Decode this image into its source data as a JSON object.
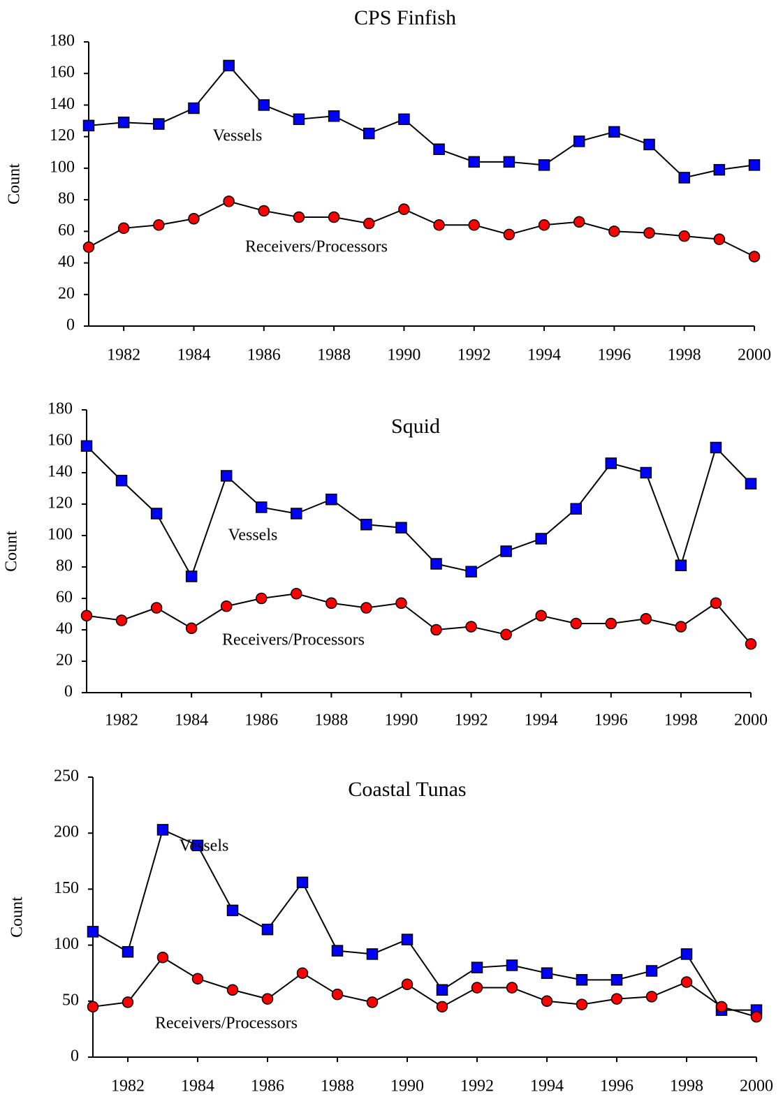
{
  "chart_data": [
    {
      "type": "line",
      "title": "CPS Finfish",
      "y_label": "Count",
      "x": [
        1981,
        1982,
        1983,
        1984,
        1985,
        1986,
        1987,
        1988,
        1989,
        1990,
        1991,
        1992,
        1993,
        1994,
        1995,
        1996,
        1997,
        1998,
        1999,
        2000
      ],
      "xlim": [
        1981,
        2000
      ],
      "xticks": [
        1982,
        1984,
        1986,
        1988,
        1990,
        1992,
        1994,
        1996,
        1998,
        2000
      ],
      "ylim": [
        0,
        180
      ],
      "yticks": [
        0,
        20,
        40,
        60,
        80,
        100,
        120,
        140,
        160,
        180
      ],
      "line_color": "#000000",
      "series": [
        {
          "name": "Vessels",
          "color": "#0000ff",
          "marker": "square",
          "values": [
            127,
            129,
            128,
            138,
            165,
            140,
            131,
            133,
            122,
            131,
            112,
            104,
            104,
            102,
            117,
            123,
            115,
            94,
            99,
            102
          ]
        },
        {
          "name": "Receivers/Processors",
          "color": "#ff0000",
          "marker": "circle",
          "values": [
            50,
            62,
            64,
            68,
            79,
            73,
            69,
            69,
            65,
            74,
            64,
            64,
            58,
            64,
            66,
            60,
            59,
            57,
            55,
            44
          ]
        }
      ]
    },
    {
      "type": "line",
      "title": "Squid",
      "y_label": "Count",
      "x": [
        1981,
        1982,
        1983,
        1984,
        1985,
        1986,
        1987,
        1988,
        1989,
        1990,
        1991,
        1992,
        1993,
        1994,
        1995,
        1996,
        1997,
        1998,
        1999,
        2000
      ],
      "xlim": [
        1981,
        2000
      ],
      "xticks": [
        1982,
        1984,
        1986,
        1988,
        1990,
        1992,
        1994,
        1996,
        1998,
        2000
      ],
      "ylim": [
        0,
        180
      ],
      "yticks": [
        0,
        20,
        40,
        60,
        80,
        100,
        120,
        140,
        160,
        180
      ],
      "line_color": "#000000",
      "series": [
        {
          "name": "Vessels",
          "color": "#0000ff",
          "marker": "square",
          "values": [
            157,
            135,
            114,
            74,
            138,
            118,
            114,
            123,
            107,
            105,
            82,
            77,
            90,
            98,
            117,
            146,
            140,
            81,
            156,
            133
          ]
        },
        {
          "name": "Receivers/Processors",
          "color": "#ff0000",
          "marker": "circle",
          "values": [
            49,
            46,
            54,
            41,
            55,
            60,
            63,
            57,
            54,
            57,
            40,
            42,
            37,
            49,
            44,
            44,
            47,
            42,
            57,
            31
          ]
        }
      ]
    },
    {
      "type": "line",
      "title": "Coastal Tunas",
      "y_label": "Count",
      "x": [
        1981,
        1982,
        1983,
        1984,
        1985,
        1986,
        1987,
        1988,
        1989,
        1990,
        1991,
        1992,
        1993,
        1994,
        1995,
        1996,
        1997,
        1998,
        1999,
        2000
      ],
      "xlim": [
        1981,
        2000
      ],
      "xticks": [
        1982,
        1984,
        1986,
        1988,
        1990,
        1992,
        1994,
        1996,
        1998,
        2000
      ],
      "ylim": [
        0,
        250
      ],
      "yticks": [
        0,
        50,
        100,
        150,
        200,
        250
      ],
      "line_color": "#000000",
      "series": [
        {
          "name": "Vessels",
          "color": "#0000ff",
          "marker": "square",
          "values": [
            112,
            94,
            203,
            189,
            131,
            114,
            156,
            95,
            92,
            105,
            60,
            80,
            82,
            75,
            69,
            69,
            77,
            92,
            42,
            42
          ]
        },
        {
          "name": "Receivers/Processors",
          "color": "#ff0000",
          "marker": "circle",
          "values": [
            45,
            49,
            89,
            70,
            60,
            52,
            75,
            56,
            49,
            65,
            45,
            62,
            62,
            50,
            47,
            52,
            54,
            67,
            45,
            36
          ]
        }
      ]
    }
  ]
}
